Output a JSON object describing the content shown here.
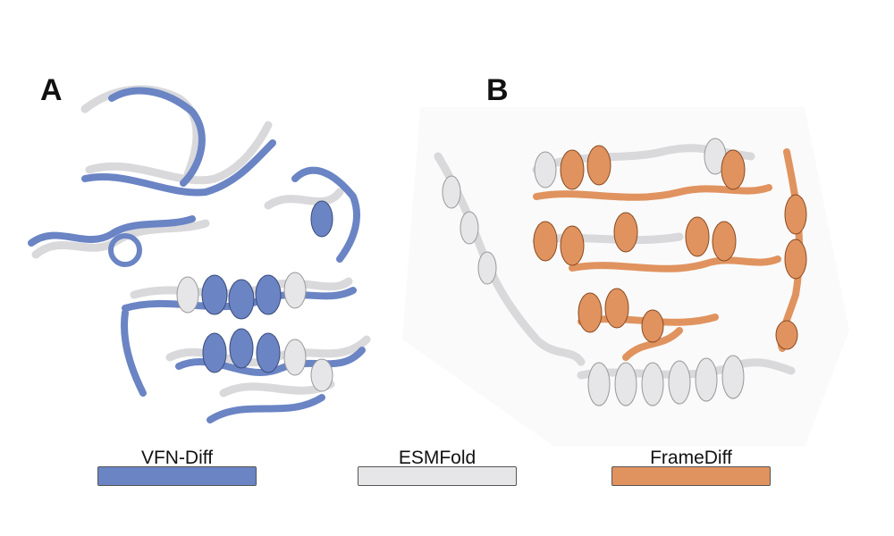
{
  "panels": {
    "a_label": "A",
    "b_label": "B"
  },
  "legend": [
    {
      "label": "VFN-Diff",
      "color": "#6a84c4"
    },
    {
      "label": "ESMFold",
      "color": "#e6e6e8"
    },
    {
      "label": "FrameDiff",
      "color": "#e0935f"
    }
  ],
  "colors": {
    "vfn_diff": "#6a84c4",
    "esmfold": "#e6e6e8",
    "framediff": "#e0935f",
    "outline": "#3a4a7a"
  }
}
